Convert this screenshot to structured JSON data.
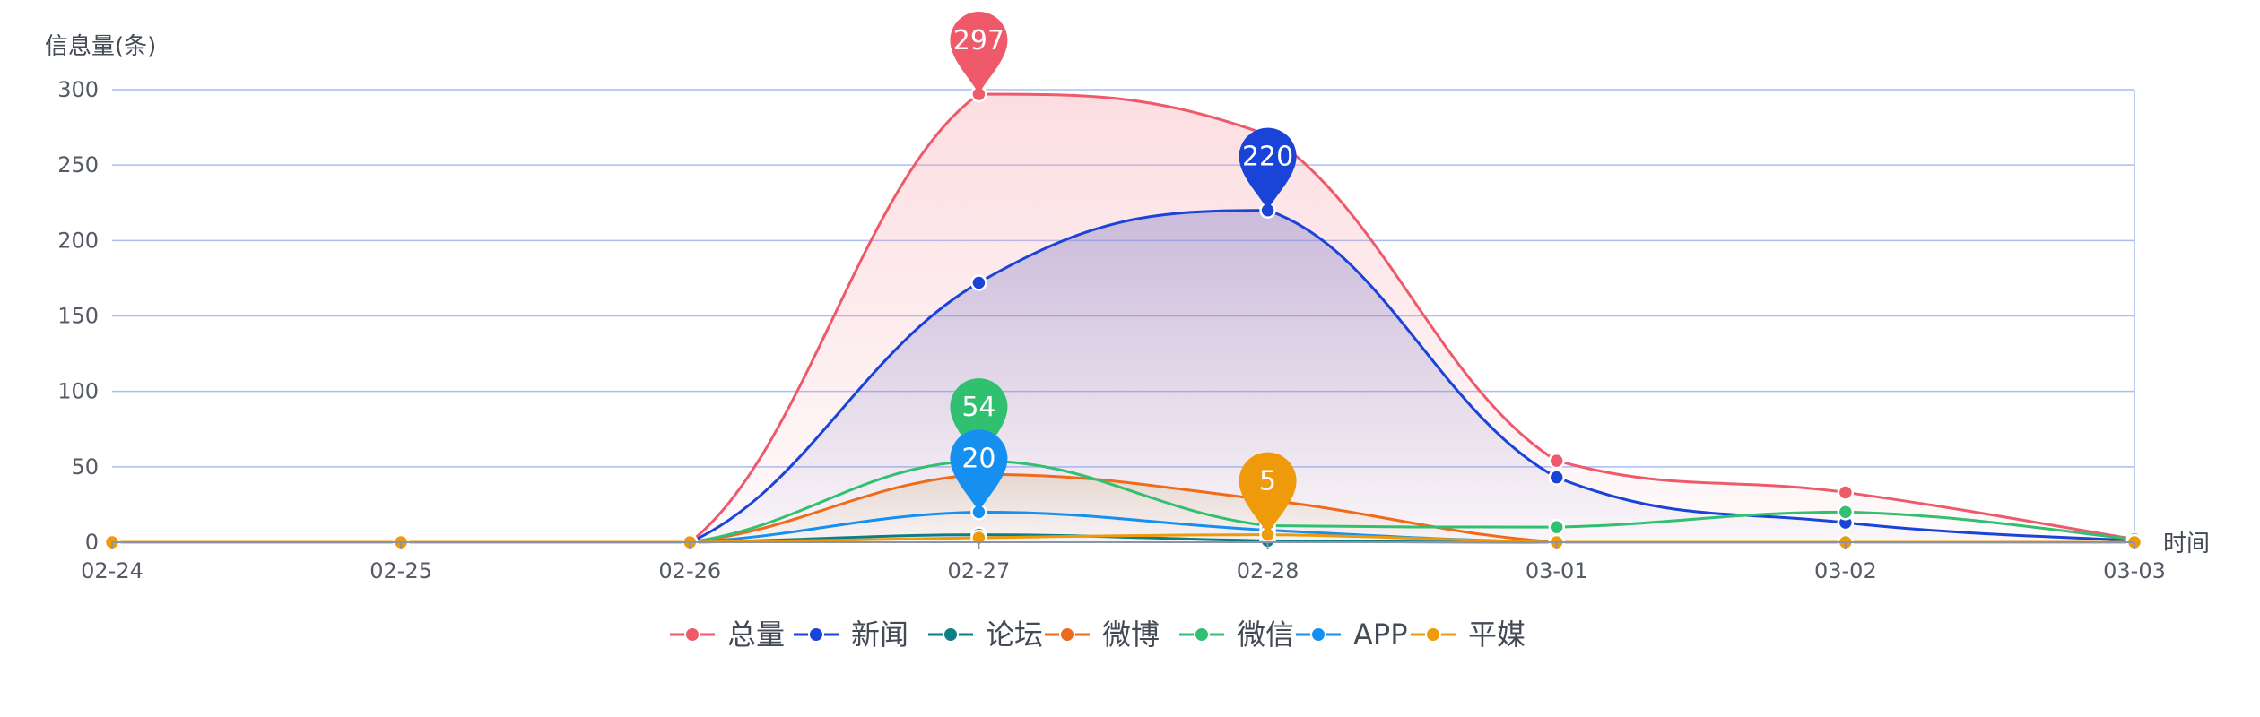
{
  "chart_data": {
    "type": "area",
    "ylabel": "信息量(条)",
    "xlabel": "时间",
    "categories": [
      "02-24",
      "02-25",
      "02-26",
      "02-27",
      "02-28",
      "03-01",
      "03-02",
      "03-03"
    ],
    "ylim": [
      0,
      300
    ],
    "yticks": [
      0,
      50,
      100,
      150,
      200,
      250,
      300
    ],
    "grid": true,
    "legend_position": "bottom",
    "series": [
      {
        "name": "总量",
        "color": "#ee5a6a",
        "values": [
          0,
          0,
          0,
          297,
          270,
          54,
          33,
          2
        ],
        "pin": {
          "index": 3,
          "label": "297"
        },
        "fill": true
      },
      {
        "name": "新闻",
        "color": "#1a44d8",
        "values": [
          0,
          0,
          0,
          172,
          220,
          43,
          13,
          1
        ],
        "pin": {
          "index": 4,
          "label": "220"
        },
        "fill": true
      },
      {
        "name": "论坛",
        "color": "#0f7e84",
        "values": [
          0,
          0,
          0,
          5,
          1,
          0,
          0,
          0
        ]
      },
      {
        "name": "微博",
        "color": "#ef6a1a",
        "values": [
          0,
          0,
          0,
          45,
          28,
          0,
          0,
          0
        ],
        "fill": true
      },
      {
        "name": "微信",
        "color": "#30c070",
        "values": [
          0,
          0,
          0,
          54,
          11,
          10,
          20,
          2
        ],
        "pin": {
          "index": 3,
          "label": "54"
        }
      },
      {
        "name": "APP",
        "color": "#1590f0",
        "values": [
          0,
          0,
          0,
          20,
          8,
          0,
          0,
          0
        ],
        "pin": {
          "index": 3,
          "label": "20"
        }
      },
      {
        "name": "平媒",
        "color": "#ef9a0a",
        "values": [
          0,
          0,
          0,
          3,
          5,
          0,
          0,
          0
        ],
        "pin": {
          "index": 4,
          "label": "5"
        }
      }
    ]
  }
}
